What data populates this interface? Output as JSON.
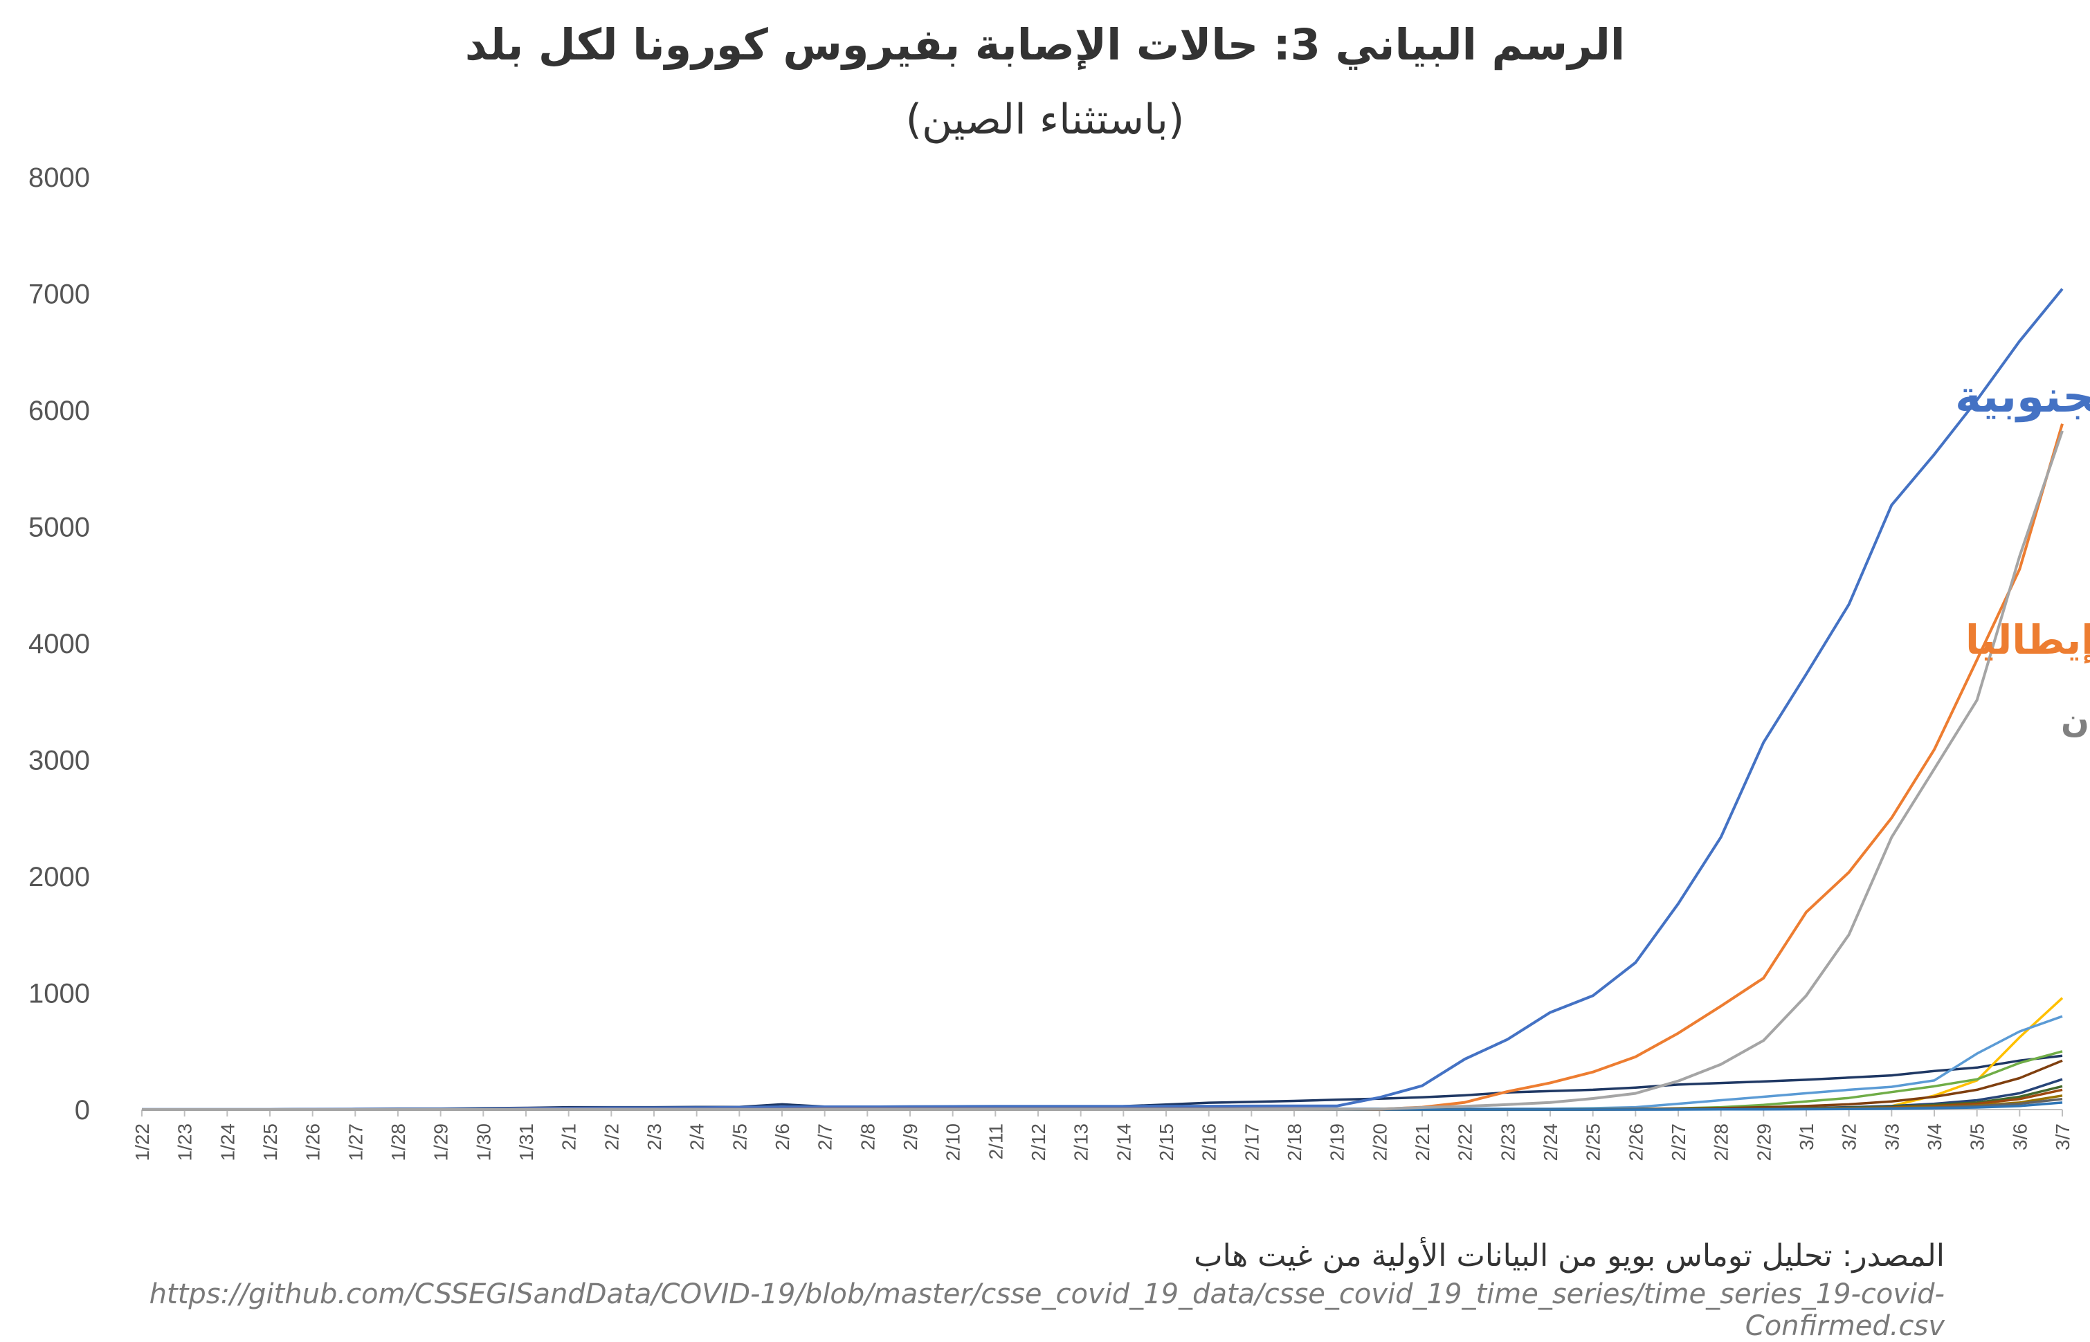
{
  "chart_data": {
    "type": "line",
    "title": "الرسم البياني 3: حالات الإصابة بفيروس كورونا لكل بلد",
    "subtitle": "(باستثناء الصين)",
    "xlabel": "",
    "ylabel": "",
    "ylim": [
      0,
      8000
    ],
    "yticks": [
      "8000",
      "7000",
      "6000",
      "5000",
      "4000",
      "3000",
      "2000",
      "1000",
      "0"
    ],
    "grid": false,
    "x": [
      "1/22",
      "1/23",
      "1/24",
      "1/25",
      "1/26",
      "1/27",
      "1/28",
      "1/29",
      "1/30",
      "1/31",
      "2/1",
      "2/2",
      "2/3",
      "2/4",
      "2/5",
      "2/6",
      "2/7",
      "2/8",
      "2/9",
      "2/10",
      "2/11",
      "2/12",
      "2/13",
      "2/14",
      "2/15",
      "2/16",
      "2/17",
      "2/18",
      "2/19",
      "2/20",
      "2/21",
      "2/22",
      "2/23",
      "2/24",
      "2/25",
      "2/26",
      "2/27",
      "2/28",
      "2/29",
      "3/1",
      "3/2",
      "3/3",
      "3/4",
      "3/5",
      "3/6",
      "3/7"
    ],
    "series": [
      {
        "name": "كوريا الجنوبية",
        "color": "#4472c4",
        "labeled": true,
        "values": [
          1,
          1,
          2,
          2,
          3,
          4,
          4,
          4,
          4,
          11,
          12,
          15,
          15,
          16,
          19,
          23,
          24,
          24,
          25,
          27,
          28,
          28,
          28,
          28,
          28,
          29,
          30,
          31,
          31,
          104,
          204,
          433,
          602,
          833,
          977,
          1261,
          1766,
          2337,
          3150,
          3736,
          4335,
          5186,
          5621,
          6088,
          6593,
          7041
        ]
      },
      {
        "name": "إيطاليا",
        "color": "#ed7d31",
        "labeled": true,
        "values": [
          0,
          0,
          0,
          0,
          0,
          0,
          0,
          0,
          0,
          2,
          2,
          2,
          2,
          2,
          2,
          2,
          3,
          3,
          3,
          3,
          3,
          3,
          3,
          3,
          3,
          3,
          3,
          3,
          3,
          3,
          20,
          62,
          155,
          229,
          322,
          453,
          655,
          888,
          1128,
          1694,
          2036,
          2502,
          3089,
          3858,
          4636,
          5883
        ]
      },
      {
        "name": "إيران",
        "color": "#a5a5a5",
        "labeled": true,
        "values": [
          0,
          0,
          0,
          0,
          0,
          0,
          0,
          0,
          0,
          0,
          0,
          0,
          0,
          0,
          0,
          0,
          0,
          0,
          0,
          0,
          0,
          0,
          0,
          0,
          0,
          0,
          0,
          0,
          2,
          5,
          18,
          28,
          43,
          61,
          95,
          139,
          245,
          388,
          593,
          978,
          1501,
          2336,
          2922,
          3513,
          4747,
          5823
        ]
      },
      {
        "color": "#1f3864",
        "labeled": false,
        "values": [
          2,
          1,
          2,
          2,
          4,
          4,
          7,
          7,
          11,
          15,
          20,
          20,
          20,
          22,
          22,
          45,
          25,
          25,
          26,
          26,
          26,
          28,
          28,
          29,
          43,
          59,
          66,
          74,
          84,
          94,
          105,
          122,
          147,
          159,
          170,
          189,
          214,
          228,
          241,
          256,
          274,
          293,
          331,
          360,
          420,
          461
        ]
      },
      {
        "color": "#ffc000",
        "labeled": false,
        "values": [
          0,
          0,
          0,
          0,
          0,
          0,
          0,
          0,
          0,
          0,
          0,
          0,
          0,
          0,
          0,
          0,
          0,
          0,
          0,
          0,
          0,
          0,
          0,
          0,
          0,
          0,
          0,
          0,
          0,
          0,
          0,
          0,
          0,
          1,
          2,
          3,
          4,
          5,
          8,
          13,
          20,
          30,
          120,
          250,
          620,
          957
        ]
      },
      {
        "color": "#5b9bd5",
        "labeled": false,
        "values": [
          0,
          0,
          2,
          2,
          3,
          3,
          4,
          5,
          5,
          6,
          6,
          6,
          6,
          6,
          6,
          6,
          6,
          6,
          6,
          7,
          7,
          7,
          7,
          7,
          7,
          7,
          7,
          7,
          7,
          7,
          7,
          7,
          7,
          7,
          12,
          20,
          50,
          80,
          110,
          140,
          170,
          195,
          250,
          480,
          670,
          800
        ]
      },
      {
        "color": "#70ad47",
        "labeled": false,
        "values": [
          0,
          0,
          0,
          0,
          0,
          0,
          0,
          0,
          0,
          1,
          1,
          1,
          1,
          1,
          1,
          1,
          1,
          1,
          1,
          1,
          1,
          1,
          1,
          1,
          1,
          1,
          1,
          1,
          1,
          1,
          1,
          1,
          1,
          2,
          3,
          5,
          10,
          20,
          40,
          70,
          100,
          150,
          200,
          260,
          400,
          500
        ]
      },
      {
        "color": "#7f3f0f",
        "labeled": false,
        "values": [
          0,
          0,
          0,
          0,
          0,
          0,
          0,
          0,
          0,
          0,
          0,
          0,
          0,
          0,
          0,
          0,
          0,
          0,
          0,
          0,
          0,
          0,
          0,
          0,
          0,
          0,
          0,
          0,
          0,
          0,
          0,
          0,
          0,
          1,
          2,
          5,
          8,
          12,
          20,
          30,
          45,
          70,
          110,
          170,
          270,
          420
        ]
      },
      {
        "color": "#264478",
        "labeled": false,
        "values": [
          0,
          0,
          0,
          0,
          0,
          0,
          0,
          0,
          0,
          0,
          0,
          0,
          0,
          0,
          0,
          0,
          0,
          0,
          0,
          0,
          0,
          0,
          0,
          0,
          0,
          0,
          0,
          0,
          0,
          0,
          0,
          0,
          0,
          0,
          1,
          2,
          3,
          5,
          8,
          12,
          20,
          30,
          50,
          80,
          140,
          260
        ]
      },
      {
        "color": "#43682b",
        "labeled": false,
        "values": [
          0,
          0,
          0,
          0,
          0,
          0,
          0,
          0,
          0,
          0,
          0,
          0,
          0,
          0,
          0,
          0,
          0,
          0,
          0,
          0,
          0,
          0,
          0,
          0,
          0,
          0,
          0,
          0,
          0,
          0,
          0,
          0,
          0,
          0,
          1,
          1,
          2,
          4,
          6,
          10,
          16,
          24,
          40,
          60,
          110,
          200
        ]
      },
      {
        "color": "#9e480e",
        "labeled": false,
        "values": [
          0,
          0,
          0,
          0,
          0,
          0,
          0,
          0,
          0,
          0,
          0,
          0,
          0,
          0,
          0,
          0,
          0,
          0,
          0,
          0,
          0,
          0,
          0,
          0,
          0,
          0,
          0,
          0,
          0,
          0,
          0,
          0,
          0,
          0,
          0,
          1,
          2,
          3,
          5,
          8,
          12,
          18,
          30,
          50,
          90,
          170
        ]
      },
      {
        "color": "#997300",
        "labeled": false,
        "values": [
          0,
          0,
          0,
          0,
          0,
          0,
          0,
          0,
          0,
          0,
          0,
          0,
          0,
          0,
          0,
          0,
          0,
          0,
          0,
          0,
          0,
          0,
          0,
          0,
          0,
          0,
          0,
          0,
          0,
          0,
          0,
          0,
          0,
          0,
          0,
          1,
          1,
          2,
          4,
          6,
          10,
          14,
          22,
          35,
          60,
          120
        ]
      },
      {
        "color": "#636363",
        "labeled": false,
        "values": [
          0,
          0,
          0,
          0,
          0,
          0,
          0,
          0,
          0,
          0,
          0,
          0,
          0,
          0,
          0,
          0,
          0,
          0,
          0,
          0,
          0,
          0,
          0,
          0,
          0,
          0,
          0,
          0,
          0,
          0,
          0,
          0,
          0,
          0,
          0,
          0,
          1,
          2,
          3,
          5,
          8,
          12,
          18,
          30,
          50,
          90
        ]
      },
      {
        "color": "#2e75b6",
        "labeled": false,
        "values": [
          0,
          0,
          0,
          0,
          0,
          0,
          0,
          0,
          0,
          0,
          0,
          0,
          0,
          0,
          0,
          0,
          0,
          0,
          0,
          0,
          0,
          0,
          0,
          0,
          0,
          0,
          0,
          0,
          0,
          0,
          0,
          0,
          0,
          0,
          0,
          0,
          0,
          1,
          2,
          3,
          5,
          8,
          12,
          18,
          30,
          60
        ]
      }
    ],
    "annotations": [
      {
        "text": "كوريا الجنوبية",
        "color": "#4472c4"
      },
      {
        "text": "إيطاليا",
        "color": "#ed7d31"
      },
      {
        "text": "إيران",
        "color": "#808080"
      }
    ]
  },
  "source_text": "المصدر: تحليل توماس بويو من البيانات الأولية من غيت هاب",
  "source_url": "https://github.com/CSSEGISandData/COVID-19/blob/master/csse_covid_19_data/csse_covid_19_time_series/time_series_19-covid-Confirmed.csv"
}
